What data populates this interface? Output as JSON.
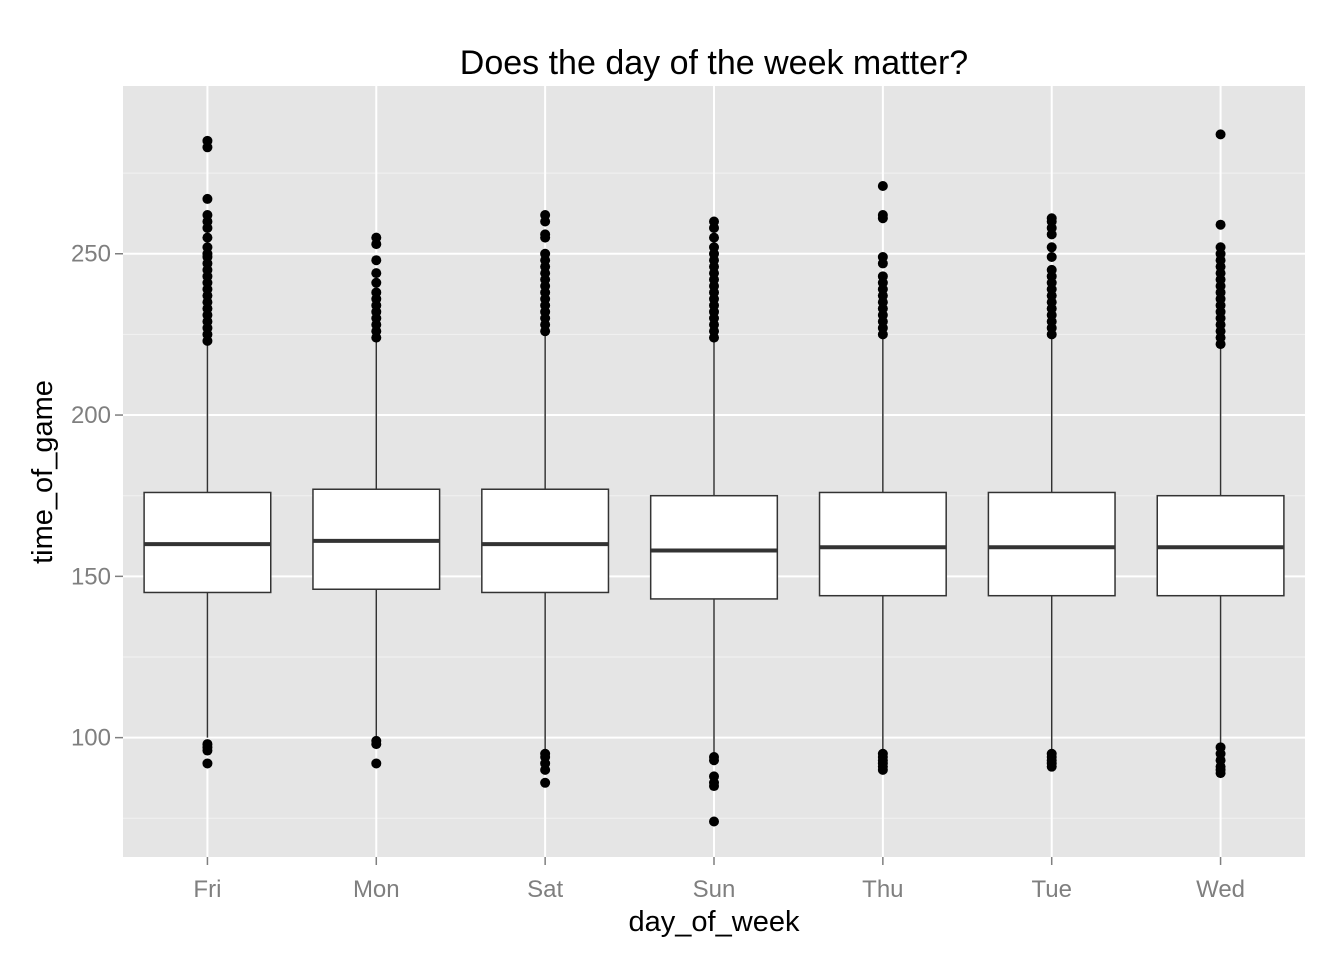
{
  "chart_data": {
    "type": "boxplot",
    "title": "Does the day of the week matter?",
    "xlabel": "day_of_week",
    "ylabel": "time_of_game",
    "categories": [
      "Fri",
      "Mon",
      "Sat",
      "Sun",
      "Thu",
      "Tue",
      "Wed"
    ],
    "ylim": [
      63,
      302
    ],
    "yticks": [
      100,
      150,
      200,
      250
    ],
    "ytick_labels": [
      "100",
      "150",
      "200",
      "250"
    ],
    "grid": true,
    "colors": {
      "panel": "#e5e5e5",
      "grid_major": "#ffffff",
      "grid_minor": "#f2f2f2",
      "box_fill": "#ffffff",
      "box_line": "#333333",
      "outlier": "#000000"
    },
    "boxes": [
      {
        "category": "Fri",
        "whisker_low": 100,
        "q1": 145,
        "median": 160,
        "q3": 176,
        "whisker_high": 222,
        "outliers": [
          92,
          96,
          97,
          98,
          223,
          225,
          227,
          229,
          231,
          233,
          235,
          237,
          239,
          241,
          243,
          245,
          247,
          249,
          250,
          252,
          255,
          258,
          260,
          262,
          267,
          283,
          285
        ]
      },
      {
        "category": "Mon",
        "whisker_low": 100,
        "q1": 146,
        "median": 161,
        "q3": 177,
        "whisker_high": 223,
        "outliers": [
          92,
          98,
          99,
          224,
          226,
          228,
          230,
          232,
          234,
          236,
          238,
          241,
          244,
          248,
          253,
          255
        ]
      },
      {
        "category": "Sat",
        "whisker_low": 96,
        "q1": 145,
        "median": 160,
        "q3": 177,
        "whisker_high": 225,
        "outliers": [
          86,
          90,
          92,
          94,
          95,
          226,
          228,
          230,
          232,
          234,
          236,
          238,
          240,
          242,
          244,
          246,
          248,
          250,
          255,
          256,
          260,
          262
        ]
      },
      {
        "category": "Sun",
        "whisker_low": 95,
        "q1": 143,
        "median": 158,
        "q3": 175,
        "whisker_high": 223,
        "outliers": [
          74,
          85,
          86,
          88,
          93,
          94,
          224,
          226,
          228,
          230,
          232,
          234,
          236,
          238,
          240,
          242,
          244,
          246,
          248,
          250,
          252,
          255,
          258,
          260
        ]
      },
      {
        "category": "Thu",
        "whisker_low": 96,
        "q1": 144,
        "median": 159,
        "q3": 176,
        "whisker_high": 224,
        "outliers": [
          90,
          91,
          92,
          93,
          94,
          95,
          225,
          227,
          229,
          231,
          233,
          235,
          237,
          239,
          241,
          243,
          247,
          249,
          261,
          262,
          271
        ]
      },
      {
        "category": "Tue",
        "whisker_low": 96,
        "q1": 144,
        "median": 159,
        "q3": 176,
        "whisker_high": 224,
        "outliers": [
          91,
          92,
          93,
          94,
          95,
          225,
          227,
          229,
          231,
          233,
          235,
          237,
          239,
          241,
          243,
          245,
          249,
          252,
          256,
          258,
          260,
          261
        ]
      },
      {
        "category": "Wed",
        "whisker_low": 98,
        "q1": 144,
        "median": 159,
        "q3": 175,
        "whisker_high": 221,
        "outliers": [
          89,
          90,
          91,
          93,
          95,
          97,
          222,
          224,
          226,
          228,
          230,
          232,
          234,
          236,
          238,
          240,
          242,
          244,
          246,
          248,
          250,
          252,
          259,
          287
        ]
      }
    ]
  }
}
